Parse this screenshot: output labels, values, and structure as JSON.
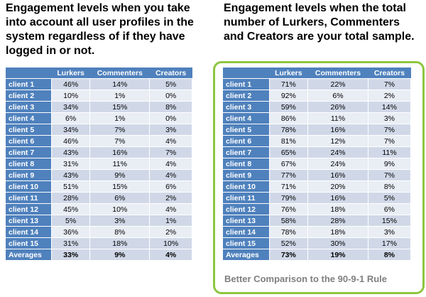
{
  "left": {
    "heading": "Engagement levels when you take into account all user profiles in the system regardless of if they have logged in or not.",
    "columns": [
      "",
      "Lurkers",
      "Commenters",
      "Creators"
    ],
    "rows": [
      [
        "client 1",
        "46%",
        "14%",
        "5%"
      ],
      [
        "client 2",
        "10%",
        "1%",
        "0%"
      ],
      [
        "client 3",
        "34%",
        "15%",
        "8%"
      ],
      [
        "client 4",
        "6%",
        "1%",
        "0%"
      ],
      [
        "client 5",
        "34%",
        "7%",
        "3%"
      ],
      [
        "client 6",
        "46%",
        "7%",
        "4%"
      ],
      [
        "client 7",
        "43%",
        "16%",
        "7%"
      ],
      [
        "client 8",
        "31%",
        "11%",
        "4%"
      ],
      [
        "client 9",
        "43%",
        "9%",
        "4%"
      ],
      [
        "client 10",
        "51%",
        "15%",
        "6%"
      ],
      [
        "client 11",
        "28%",
        "6%",
        "2%"
      ],
      [
        "client 12",
        "45%",
        "10%",
        "4%"
      ],
      [
        "client 13",
        "5%",
        "3%",
        "1%"
      ],
      [
        "client 14",
        "36%",
        "8%",
        "2%"
      ],
      [
        "client 15",
        "31%",
        "18%",
        "10%"
      ],
      [
        "Averages",
        "33%",
        "9%",
        "4%"
      ]
    ]
  },
  "right": {
    "heading": "Engagement levels when the total number of Lurkers, Commenters and Creators are your total sample.",
    "columns": [
      "",
      "Lurkers",
      "Commenters",
      "Creators"
    ],
    "rows": [
      [
        "client 1",
        "71%",
        "22%",
        "7%"
      ],
      [
        "client 2",
        "92%",
        "6%",
        "2%"
      ],
      [
        "client 3",
        "59%",
        "26%",
        "14%"
      ],
      [
        "client 4",
        "86%",
        "11%",
        "3%"
      ],
      [
        "client 5",
        "78%",
        "16%",
        "7%"
      ],
      [
        "client 6",
        "81%",
        "12%",
        "7%"
      ],
      [
        "client 7",
        "65%",
        "24%",
        "11%"
      ],
      [
        "client 8",
        "67%",
        "24%",
        "9%"
      ],
      [
        "client 9",
        "77%",
        "16%",
        "7%"
      ],
      [
        "client 10",
        "71%",
        "20%",
        "8%"
      ],
      [
        "client 11",
        "79%",
        "16%",
        "5%"
      ],
      [
        "client 12",
        "76%",
        "18%",
        "6%"
      ],
      [
        "client 13",
        "58%",
        "28%",
        "15%"
      ],
      [
        "client 14",
        "78%",
        "18%",
        "3%"
      ],
      [
        "client 15",
        "52%",
        "30%",
        "17%"
      ],
      [
        "Averages",
        "73%",
        "19%",
        "8%"
      ]
    ],
    "caption": "Better Comparison to the 90-9-1 Rule"
  },
  "colors": {
    "header_blue": "#4f81bd",
    "row_light": "#e9edf4",
    "row_medium": "#d0d8e8",
    "panel_green": "#8dc63f",
    "caption_gray": "#7f7f7f"
  }
}
